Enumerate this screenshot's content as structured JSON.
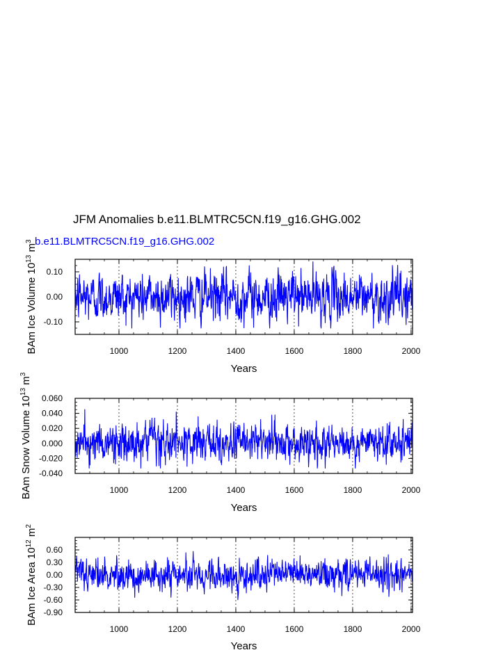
{
  "figure_title": "JFM Anomalies b.e11.BLMTRC5CN.f19_g16.GHG.002",
  "case_label": "b.e11.BLMTRC5CN.f19_g16.GHG.002",
  "line_color": "#0000ff",
  "chart_data": [
    {
      "type": "line",
      "title": "JFM Anomalies b.e11.BLMTRC5CN.f19_g16.GHG.002",
      "legend": "b.e11.BLMTRC5CN.f19_g16.GHG.002",
      "xlabel": "Years",
      "ylabel_parts": {
        "pre": "BAm Ice Volume 10",
        "exp": "13",
        "mid": " m",
        "unit_exp": "3"
      },
      "xlim": [
        850,
        2005
      ],
      "ylim": [
        -0.15,
        0.15
      ],
      "xticks": [
        1000,
        1200,
        1400,
        1600,
        1800,
        2000
      ],
      "xtick_labels": [
        "1000",
        "1200",
        "1400",
        "1600",
        "1800",
        "2000"
      ],
      "yticks": [
        -0.1,
        0.0,
        0.1
      ],
      "ytick_labels": [
        "-0.10",
        "0.00",
        "0.10"
      ],
      "series": {
        "name": "BAm Ice Volume anomaly",
        "x_start": 850,
        "x_end": 2005,
        "n": 1156,
        "amplitude": 0.045,
        "min": -0.125,
        "max": 0.14
      }
    },
    {
      "type": "line",
      "xlabel": "Years",
      "ylabel_parts": {
        "pre": "BAm Snow Volume 10",
        "exp": "13",
        "mid": " m",
        "unit_exp": "3"
      },
      "xlim": [
        850,
        2005
      ],
      "ylim": [
        -0.04,
        0.06
      ],
      "xticks": [
        1000,
        1200,
        1400,
        1600,
        1800,
        2000
      ],
      "xtick_labels": [
        "1000",
        "1200",
        "1400",
        "1600",
        "1800",
        "2000"
      ],
      "yticks": [
        -0.04,
        -0.02,
        0.0,
        0.02,
        0.04,
        0.06
      ],
      "ytick_labels": [
        "-0.040",
        "-0.020",
        "0.000",
        "0.020",
        "0.040",
        "0.060"
      ],
      "series": {
        "name": "BAm Snow Volume anomaly",
        "x_start": 850,
        "x_end": 2005,
        "n": 1156,
        "amplitude": 0.012,
        "min": -0.033,
        "max": 0.049
      }
    },
    {
      "type": "line",
      "xlabel": "Years",
      "ylabel_parts": {
        "pre": "BAm Ice Area 10",
        "exp": "12",
        "mid": " m",
        "unit_exp": "2"
      },
      "xlim": [
        850,
        2005
      ],
      "ylim": [
        -0.9,
        0.9
      ],
      "xticks": [
        1000,
        1200,
        1400,
        1600,
        1800,
        2000
      ],
      "xtick_labels": [
        "1000",
        "1200",
        "1400",
        "1600",
        "1800",
        "2000"
      ],
      "yticks": [
        -0.9,
        -0.6,
        -0.3,
        0.0,
        0.3,
        0.6
      ],
      "ytick_labels": [
        "-0.90",
        "-0.60",
        "-0.30",
        "0.00",
        "0.30",
        "0.60"
      ],
      "series": {
        "name": "BAm Ice Area anomaly",
        "x_start": 850,
        "x_end": 2005,
        "n": 1156,
        "amplitude": 0.17,
        "min": -0.62,
        "max": 0.6
      }
    }
  ]
}
